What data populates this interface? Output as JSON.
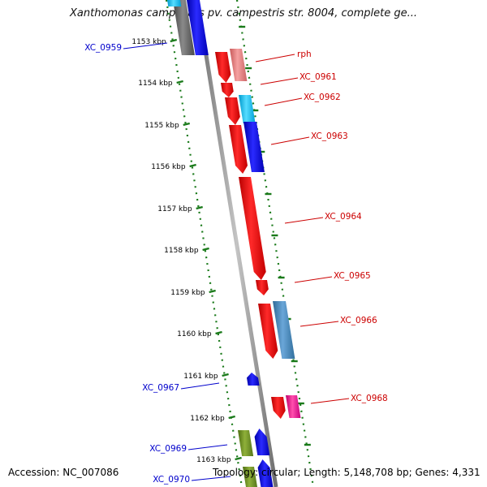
{
  "title": "Xanthomonas campestris pv. campestris str. 8004, complete ge...",
  "footer": {
    "accession": "Accession: NC_007086",
    "topology": "Topology: circular; Length: 5,148,708 bp; Genes: 4,331"
  },
  "colors": {
    "backbone": "#8c8c8c",
    "tick": "#1a7a1a",
    "forward_label": "#cc0000",
    "reverse_label": "#0000cc"
  },
  "ticks": [
    {
      "label": "1153 kbp"
    },
    {
      "label": "1154 kbp"
    },
    {
      "label": "1155 kbp"
    },
    {
      "label": "1156 kbp"
    },
    {
      "label": "1157 kbp"
    },
    {
      "label": "1158 kbp"
    },
    {
      "label": "1159 kbp"
    },
    {
      "label": "1160 kbp"
    },
    {
      "label": "1161 kbp"
    },
    {
      "label": "1162 kbp"
    },
    {
      "label": "1163 kbp"
    }
  ],
  "genes": [
    {
      "label": "XC_0959",
      "strand": "reverse"
    },
    {
      "label": "rph",
      "strand": "forward"
    },
    {
      "label": "XC_0961",
      "strand": "forward"
    },
    {
      "label": "XC_0962",
      "strand": "forward"
    },
    {
      "label": "XC_0963",
      "strand": "forward"
    },
    {
      "label": "XC_0964",
      "strand": "forward"
    },
    {
      "label": "XC_0965",
      "strand": "forward"
    },
    {
      "label": "XC_0966",
      "strand": "forward"
    },
    {
      "label": "XC_0967",
      "strand": "reverse"
    },
    {
      "label": "XC_0968",
      "strand": "forward"
    },
    {
      "label": "XC_0969",
      "strand": "reverse"
    },
    {
      "label": "XC_0970",
      "strand": "reverse"
    }
  ]
}
